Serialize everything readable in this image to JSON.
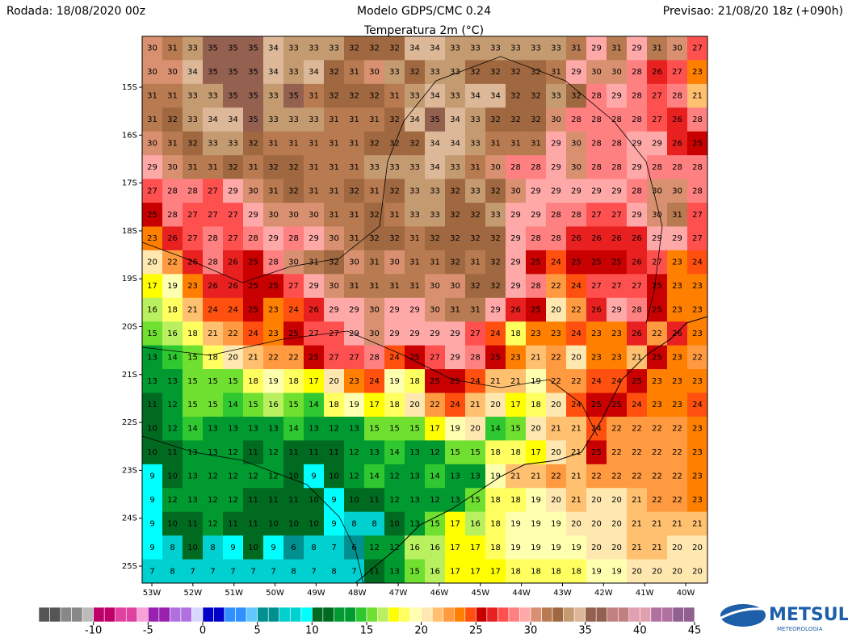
{
  "header": {
    "run": "Rodada: 18/08/2020 00z",
    "model": "Modelo GDPS/CMC 0.24",
    "variable": "Temperatura 2m (°C)",
    "forecast": "Previsao: 21/08/20 18z (+090h)"
  },
  "map": {
    "lat_labels": [
      "15S",
      "16S",
      "17S",
      "18S",
      "19S",
      "20S",
      "21S",
      "22S",
      "23S",
      "24S",
      "25S"
    ],
    "lon_labels": [
      "53W",
      "52W",
      "51W",
      "50W",
      "49W",
      "48W",
      "47W",
      "46W",
      "45W",
      "44W",
      "43W",
      "42W",
      "41W",
      "40W"
    ]
  },
  "grid": {
    "rows": [
      [
        30,
        31,
        33,
        35,
        35,
        35,
        34,
        33,
        33,
        33,
        32,
        32,
        32,
        34,
        34,
        33,
        33,
        33,
        33,
        33,
        33,
        31,
        29,
        31,
        29,
        31,
        30,
        27
      ],
      [
        30,
        30,
        34,
        35,
        35,
        35,
        34,
        33,
        34,
        32,
        31,
        30,
        33,
        32,
        33,
        33,
        32,
        32,
        32,
        32,
        31,
        29,
        30,
        30,
        28,
        26,
        27,
        23
      ],
      [
        31,
        31,
        33,
        33,
        35,
        35,
        33,
        35,
        31,
        32,
        32,
        32,
        31,
        33,
        34,
        33,
        34,
        34,
        32,
        32,
        33,
        32,
        28,
        29,
        28,
        27,
        28,
        21
      ],
      [
        31,
        32,
        33,
        34,
        34,
        35,
        33,
        33,
        33,
        31,
        31,
        31,
        32,
        34,
        35,
        34,
        33,
        32,
        32,
        32,
        30,
        28,
        28,
        28,
        28,
        27,
        26,
        28
      ],
      [
        30,
        31,
        32,
        33,
        33,
        32,
        31,
        31,
        31,
        31,
        31,
        32,
        32,
        32,
        34,
        34,
        33,
        31,
        31,
        31,
        29,
        30,
        28,
        28,
        29,
        29,
        26,
        25
      ],
      [
        29,
        30,
        31,
        31,
        32,
        31,
        32,
        32,
        31,
        31,
        31,
        33,
        33,
        33,
        34,
        33,
        31,
        30,
        28,
        28,
        29,
        30,
        28,
        28,
        29,
        28,
        28,
        28
      ],
      [
        27,
        28,
        28,
        27,
        29,
        30,
        31,
        32,
        31,
        31,
        32,
        31,
        32,
        33,
        33,
        32,
        33,
        32,
        30,
        29,
        29,
        29,
        29,
        29,
        28,
        30,
        30,
        28
      ],
      [
        25,
        28,
        27,
        27,
        27,
        29,
        30,
        30,
        30,
        31,
        31,
        32,
        31,
        33,
        33,
        32,
        32,
        33,
        29,
        29,
        28,
        28,
        27,
        27,
        29,
        30,
        31,
        27
      ],
      [
        23,
        26,
        27,
        28,
        27,
        28,
        29,
        28,
        29,
        30,
        31,
        32,
        32,
        31,
        32,
        32,
        32,
        32,
        29,
        28,
        28,
        26,
        26,
        26,
        26,
        29,
        29,
        27
      ],
      [
        20,
        22,
        26,
        28,
        26,
        25,
        28,
        30,
        31,
        32,
        30,
        31,
        30,
        31,
        31,
        32,
        31,
        32,
        29,
        25,
        24,
        25,
        25,
        25,
        26,
        27,
        23,
        24
      ],
      [
        17,
        19,
        23,
        26,
        26,
        25,
        25,
        27,
        29,
        30,
        31,
        31,
        31,
        31,
        30,
        30,
        32,
        32,
        29,
        28,
        22,
        24,
        27,
        27,
        27,
        25,
        23,
        23
      ],
      [
        16,
        18,
        21,
        24,
        24,
        25,
        23,
        24,
        26,
        29,
        29,
        30,
        29,
        29,
        30,
        31,
        31,
        29,
        26,
        25,
        20,
        22,
        26,
        29,
        28,
        25,
        23,
        23
      ],
      [
        15,
        16,
        18,
        21,
        22,
        24,
        23,
        25,
        27,
        27,
        29,
        30,
        29,
        29,
        29,
        29,
        27,
        24,
        18,
        23,
        23,
        24,
        23,
        23,
        26,
        22,
        26,
        23
      ],
      [
        13,
        14,
        15,
        18,
        20,
        21,
        22,
        22,
        25,
        27,
        27,
        28,
        24,
        25,
        27,
        29,
        28,
        25,
        23,
        21,
        22,
        20,
        23,
        23,
        21,
        25,
        23,
        22
      ],
      [
        13,
        13,
        15,
        15,
        15,
        18,
        19,
        18,
        17,
        20,
        23,
        24,
        19,
        18,
        25,
        25,
        24,
        21,
        21,
        19,
        22,
        22,
        24,
        24,
        25,
        23,
        23,
        23
      ],
      [
        11,
        12,
        15,
        15,
        14,
        15,
        16,
        15,
        14,
        18,
        19,
        17,
        18,
        20,
        22,
        24,
        21,
        20,
        17,
        18,
        20,
        24,
        25,
        25,
        24,
        23,
        23,
        24
      ],
      [
        10,
        12,
        14,
        13,
        13,
        13,
        13,
        14,
        13,
        12,
        13,
        15,
        15,
        15,
        17,
        19,
        20,
        14,
        15,
        20,
        21,
        21,
        24,
        22,
        22,
        22,
        22,
        23
      ],
      [
        10,
        11,
        13,
        13,
        12,
        11,
        12,
        11,
        11,
        11,
        12,
        13,
        14,
        13,
        12,
        15,
        15,
        18,
        18,
        17,
        20,
        21,
        25,
        22,
        22,
        22,
        22,
        23
      ],
      [
        9,
        10,
        13,
        12,
        12,
        12,
        12,
        10,
        9,
        10,
        12,
        14,
        12,
        13,
        14,
        13,
        13,
        19,
        21,
        21,
        22,
        21,
        22,
        22,
        22,
        22,
        22,
        23
      ],
      [
        9,
        12,
        13,
        12,
        12,
        11,
        11,
        11,
        10,
        9,
        10,
        11,
        12,
        13,
        12,
        13,
        15,
        18,
        18,
        19,
        20,
        21,
        20,
        20,
        21,
        22,
        22,
        23
      ],
      [
        9,
        10,
        11,
        12,
        11,
        11,
        10,
        10,
        10,
        9,
        8,
        8,
        10,
        13,
        15,
        17,
        16,
        18,
        19,
        19,
        19,
        20,
        20,
        20,
        21,
        21,
        21,
        21
      ],
      [
        9,
        8,
        10,
        8,
        9,
        10,
        9,
        6,
        8,
        7,
        6,
        12,
        12,
        16,
        16,
        17,
        17,
        18,
        19,
        19,
        19,
        19,
        20,
        20,
        21,
        21,
        20,
        20
      ],
      [
        7,
        8,
        7,
        7,
        7,
        7,
        7,
        8,
        7,
        8,
        7,
        11,
        13,
        15,
        16,
        17,
        17,
        17,
        18,
        18,
        18,
        18,
        19,
        19,
        20,
        20,
        20,
        20
      ]
    ]
  },
  "colorbar": {
    "range": [
      -15,
      45
    ],
    "ticks": [
      -10,
      -5,
      0,
      5,
      10,
      15,
      20,
      25,
      30,
      35,
      40,
      45
    ],
    "colorscale": [
      {
        "from": -15,
        "color": "#555555"
      },
      {
        "from": -13,
        "color": "#888888"
      },
      {
        "from": -11,
        "color": "#bbbbbb"
      },
      {
        "from": -10,
        "color": "#c0006a"
      },
      {
        "from": -8,
        "color": "#e040a0"
      },
      {
        "from": -6,
        "color": "#f8a0d8"
      },
      {
        "from": -5,
        "color": "#9a20b0"
      },
      {
        "from": -3,
        "color": "#b070e0"
      },
      {
        "from": -1,
        "color": "#d8d8ff"
      },
      {
        "from": 0,
        "color": "#0000c8"
      },
      {
        "from": 2,
        "color": "#3090ff"
      },
      {
        "from": 4,
        "color": "#60c8ff"
      },
      {
        "from": 5,
        "color": "#009090"
      },
      {
        "from": 7,
        "color": "#00d0d0"
      },
      {
        "from": 9,
        "color": "#00ffff"
      },
      {
        "from": 10,
        "color": "#006a20"
      },
      {
        "from": 12,
        "color": "#009a30"
      },
      {
        "from": 14,
        "color": "#30c830"
      },
      {
        "from": 15,
        "color": "#70e030"
      },
      {
        "from": 16,
        "color": "#b8f060"
      },
      {
        "from": 17,
        "color": "#ffff00"
      },
      {
        "from": 18,
        "color": "#ffff60"
      },
      {
        "from": 19,
        "color": "#ffffb0"
      },
      {
        "from": 20,
        "color": "#ffe8b0"
      },
      {
        "from": 21,
        "color": "#ffc070"
      },
      {
        "from": 22,
        "color": "#ff9a40"
      },
      {
        "from": 23,
        "color": "#ff8000"
      },
      {
        "from": 24,
        "color": "#ff5010"
      },
      {
        "from": 25,
        "color": "#c80000"
      },
      {
        "from": 26,
        "color": "#e82020"
      },
      {
        "from": 27,
        "color": "#ff5050"
      },
      {
        "from": 28,
        "color": "#ff8080"
      },
      {
        "from": 29,
        "color": "#ffa8a8"
      },
      {
        "from": 30,
        "color": "#d89070"
      },
      {
        "from": 31,
        "color": "#b87a50"
      },
      {
        "from": 32,
        "color": "#a06840"
      },
      {
        "from": 33,
        "color": "#c49a70"
      },
      {
        "from": 34,
        "color": "#dcb898"
      },
      {
        "from": 35,
        "color": "#946050"
      },
      {
        "from": 37,
        "color": "#c08080"
      },
      {
        "from": 39,
        "color": "#e0a0b0"
      },
      {
        "from": 41,
        "color": "#b070a0"
      },
      {
        "from": 43,
        "color": "#906090"
      }
    ]
  },
  "logo": {
    "name": "METSUL",
    "tagline": "METEOROLOGIA"
  }
}
